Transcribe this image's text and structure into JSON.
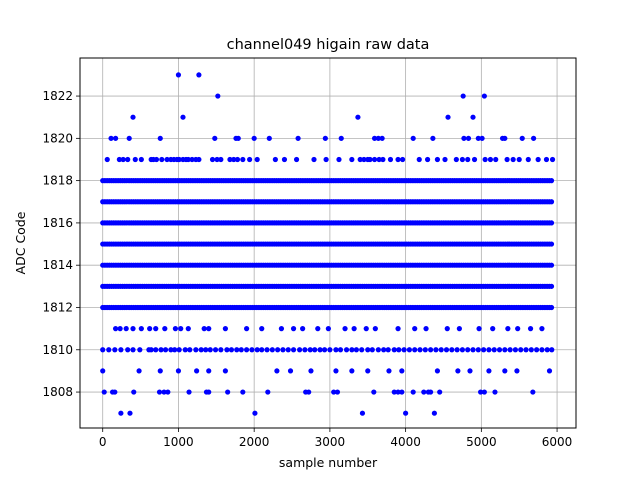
{
  "chart_data": {
    "type": "scatter",
    "title": "channel049 higain raw data",
    "xlabel": "sample number",
    "ylabel": "ADC Code",
    "xlim": [
      -300,
      6250
    ],
    "ylim": [
      1806.3,
      1823.8
    ],
    "x_ticks": [
      0,
      1000,
      2000,
      3000,
      4000,
      5000,
      6000
    ],
    "y_ticks": [
      1808,
      1810,
      1812,
      1814,
      1816,
      1818,
      1820,
      1822
    ],
    "grid": true,
    "marker_color": "#0000ff",
    "sample_range": [
      0,
      5940
    ],
    "dense_levels": [
      1812,
      1813,
      1814,
      1815,
      1816,
      1817,
      1818
    ],
    "sparse_levels": {
      "1809": [
        0,
        480,
        760,
        1000,
        1240,
        1400,
        1620,
        2300,
        2480,
        2750,
        3080,
        3290,
        3500,
        3780,
        3950,
        4420,
        4690,
        4850,
        5100,
        5310,
        5470,
        5900
      ],
      "1808": [
        20,
        130,
        160,
        410,
        750,
        810,
        860,
        1140,
        1370,
        1400,
        1650,
        1850,
        2180,
        2680,
        2720,
        3050,
        3100,
        3580,
        3850,
        3900,
        3950,
        4100,
        4240,
        4300,
        4330,
        4450,
        4990,
        5040,
        5180,
        5680
      ],
      "1819": [
        60,
        220,
        270,
        330,
        430,
        510,
        640,
        670,
        710,
        780,
        850,
        900,
        940,
        980,
        1010,
        1060,
        1100,
        1130,
        1180,
        1230,
        1270,
        1450,
        1510,
        1560,
        1680,
        1730,
        1780,
        1850,
        1940,
        2040,
        2280,
        2400,
        2560,
        2790,
        2950,
        3120,
        3290,
        3400,
        3450,
        3500,
        3530,
        3590,
        3650,
        3700,
        3800,
        3900,
        3960,
        4180,
        4290,
        4420,
        4520,
        4670,
        4750,
        4820,
        4910,
        5050,
        5120,
        5190,
        5340,
        5420,
        5500,
        5620,
        5750,
        5860,
        5940
      ],
      "1820": [
        110,
        170,
        350,
        760,
        1480,
        1760,
        1790,
        2000,
        2200,
        2580,
        2940,
        3150,
        3590,
        3640,
        3690,
        4100,
        4360,
        4770,
        4830,
        4960,
        5010,
        5280,
        5310,
        5540,
        5690
      ],
      "1811": [
        170,
        230,
        310,
        400,
        510,
        620,
        700,
        820,
        960,
        1030,
        1130,
        1340,
        1400,
        1620,
        1900,
        2100,
        2360,
        2520,
        2640,
        2840,
        2980,
        3200,
        3320,
        3480,
        3600,
        3900,
        4120,
        4270,
        4550,
        4710,
        4970,
        5150,
        5350,
        5480,
        5650,
        5800
      ],
      "1810": [
        0,
        80,
        160,
        240,
        330,
        400,
        490,
        610,
        640,
        700,
        770,
        830,
        900,
        950,
        1010,
        1090,
        1150,
        1230,
        1300,
        1360,
        1420,
        1490,
        1560,
        1640,
        1700,
        1770,
        1830,
        1900,
        1970,
        2040,
        2100,
        2170,
        2240,
        2310,
        2380,
        2450,
        2520,
        2600,
        2670,
        2740,
        2800,
        2870,
        2930,
        3000,
        3080,
        3140,
        3220,
        3290,
        3350,
        3420,
        3500,
        3560,
        3640,
        3710,
        3770,
        3850,
        3910,
        3980,
        4050,
        4120,
        4190,
        4260,
        4330,
        4400,
        4470,
        4540,
        4610,
        4680,
        4750,
        4820,
        4890,
        4960,
        5030,
        5100,
        5170,
        5240,
        5310,
        5380,
        5450,
        5520,
        5590,
        5660,
        5730,
        5800,
        5870,
        5930
      ],
      "1821": [
        400,
        1060,
        3370,
        4560,
        4890
      ],
      "1822": [
        1520,
        4760,
        5040
      ],
      "1823": [
        1000,
        1270
      ],
      "1807": [
        240,
        360,
        2010,
        3430,
        4000,
        4380
      ]
    }
  }
}
